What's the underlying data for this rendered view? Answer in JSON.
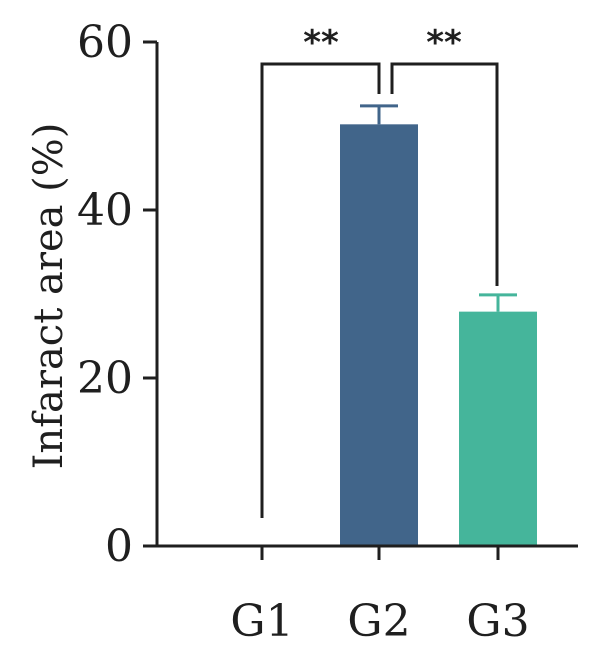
{
  "chart_data": {
    "type": "bar",
    "title": "",
    "xlabel": "",
    "ylabel": "Infaract area (%)",
    "categories": [
      "G1",
      "G2",
      "G3"
    ],
    "values": [
      0,
      50.2,
      27.9
    ],
    "error": [
      0,
      2.2,
      2.0
    ],
    "colors": [
      "#ffffff",
      "#41658a",
      "#45b59b"
    ],
    "ylim": [
      0,
      60
    ],
    "yticks": [
      0,
      20,
      40,
      60
    ],
    "grid": false,
    "significance": [
      {
        "from": "G1",
        "to": "G2",
        "label": "**"
      },
      {
        "from": "G2",
        "to": "G3",
        "label": "**"
      }
    ]
  }
}
